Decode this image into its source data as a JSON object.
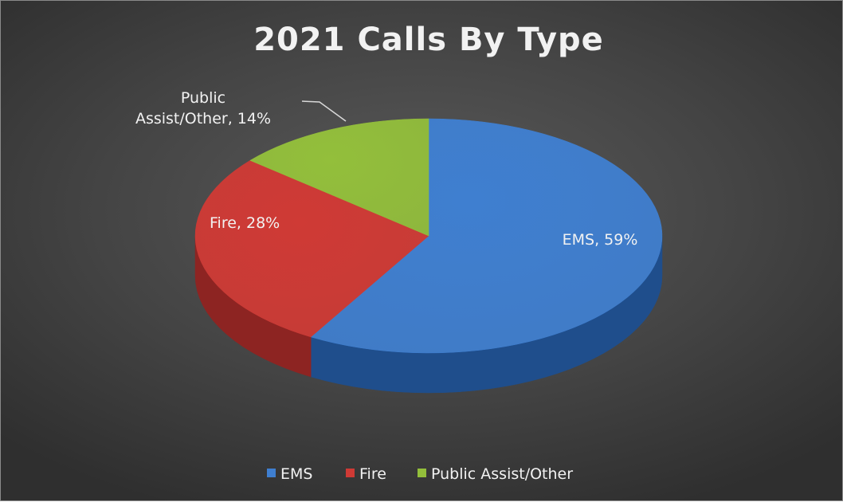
{
  "chart_data": {
    "type": "pie",
    "title": "2021 Calls By Type",
    "categories": [
      "EMS",
      "Fire",
      "Public Assist/Other"
    ],
    "values": [
      59,
      28,
      14
    ],
    "unit": "%",
    "data_labels": [
      "EMS, 59%",
      "Fire, 28%",
      "Public Assist/Other, 14%"
    ],
    "legend": {
      "position": "bottom",
      "entries": [
        "EMS",
        "Fire",
        "Public Assist/Other"
      ]
    },
    "colors": [
      "#3f7fd0",
      "#cf3a35",
      "#93bf3b"
    ],
    "side_colors": [
      "#1f4e8c",
      "#8d2422",
      "#5f7d26"
    ]
  }
}
